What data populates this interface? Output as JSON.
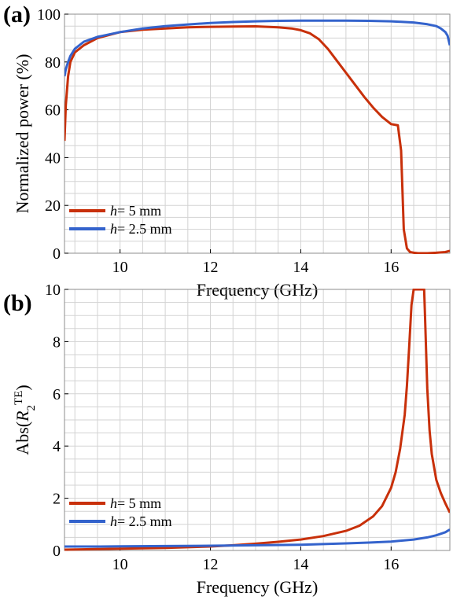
{
  "chart_data": [
    {
      "panel_label": "(a)",
      "type": "line",
      "xlabel": "Frequency (GHz)",
      "ylabel": "Normalized power (%)",
      "xlim": [
        8.77,
        17.3
      ],
      "ylim": [
        0,
        100
      ],
      "xticks": [
        10,
        12,
        14,
        16
      ],
      "yticks": [
        0,
        20,
        40,
        60,
        80,
        100
      ],
      "grid": true,
      "legend_position": "bottom-left",
      "series": [
        {
          "name_prefix": "h",
          "name_suffix": "= 5 mm",
          "color": "#c8300a",
          "x": [
            8.77,
            8.8,
            8.85,
            8.9,
            9.0,
            9.2,
            9.5,
            10.0,
            10.5,
            11.0,
            11.5,
            12.0,
            12.5,
            13.0,
            13.5,
            13.8,
            14.0,
            14.2,
            14.4,
            14.6,
            14.8,
            15.0,
            15.2,
            15.4,
            15.6,
            15.8,
            16.0,
            16.15,
            16.22,
            16.28,
            16.35,
            16.42,
            16.5,
            16.6,
            16.8,
            17.0,
            17.2,
            17.3
          ],
          "y": [
            47,
            62,
            74,
            80,
            84,
            87,
            90,
            92.5,
            93.5,
            94,
            94.5,
            94.7,
            94.8,
            94.9,
            94.5,
            94.0,
            93.3,
            92.0,
            89.5,
            85.5,
            80.5,
            75.5,
            70.5,
            65.5,
            61,
            57,
            54,
            53.5,
            43,
            10,
            2,
            0.5,
            0.2,
            0,
            0,
            0.2,
            0.5,
            1
          ]
        },
        {
          "name_prefix": "h",
          "name_suffix": "= 2.5 mm",
          "color": "#3463cc",
          "x": [
            8.77,
            8.8,
            8.85,
            8.9,
            9.0,
            9.2,
            9.5,
            10.0,
            10.5,
            11.0,
            11.5,
            12.0,
            12.5,
            13.0,
            13.5,
            14.0,
            14.5,
            15.0,
            15.5,
            16.0,
            16.5,
            16.8,
            17.0,
            17.1,
            17.2,
            17.25,
            17.3
          ],
          "y": [
            74,
            77,
            80,
            82.5,
            85.5,
            88.5,
            90.5,
            92.5,
            94,
            95,
            95.7,
            96.3,
            96.7,
            97,
            97.2,
            97.3,
            97.3,
            97.3,
            97.2,
            97,
            96.5,
            95.8,
            95,
            94,
            92.5,
            91,
            87
          ]
        }
      ]
    },
    {
      "panel_label": "(b)",
      "type": "line",
      "xlabel": "Frequency (GHz)",
      "ylabel_prefix": "Abs(",
      "ylabel_var": "R",
      "ylabel_sub": "2",
      "ylabel_sup": "TE",
      "ylabel_suffix": ")",
      "xlim": [
        8.77,
        17.3
      ],
      "ylim": [
        0,
        10
      ],
      "xticks": [
        10,
        12,
        14,
        16
      ],
      "yticks": [
        0,
        2,
        4,
        6,
        8,
        10
      ],
      "grid": true,
      "legend_position": "bottom-left",
      "series": [
        {
          "name_prefix": "h",
          "name_suffix": "= 5 mm",
          "color": "#c8300a",
          "x": [
            8.77,
            9.5,
            10.0,
            11.0,
            12.0,
            12.5,
            13.0,
            13.5,
            14.0,
            14.5,
            15.0,
            15.3,
            15.6,
            15.8,
            16.0,
            16.1,
            16.2,
            16.3,
            16.35,
            16.4,
            16.45,
            16.5,
            16.52,
            16.73,
            16.75,
            16.8,
            16.85,
            16.9,
            17.0,
            17.1,
            17.2,
            17.3
          ],
          "y": [
            0.03,
            0.05,
            0.07,
            0.1,
            0.15,
            0.2,
            0.26,
            0.33,
            0.42,
            0.55,
            0.75,
            0.95,
            1.3,
            1.7,
            2.4,
            3.0,
            3.9,
            5.2,
            6.3,
            7.8,
            9.4,
            10,
            10,
            10,
            9.0,
            6.2,
            4.6,
            3.7,
            2.7,
            2.2,
            1.8,
            1.45
          ]
        },
        {
          "name_prefix": "h",
          "name_suffix": "= 2.5 mm",
          "color": "#3463cc",
          "x": [
            8.77,
            9.5,
            10.0,
            11.0,
            12.0,
            13.0,
            14.0,
            15.0,
            15.5,
            16.0,
            16.5,
            16.8,
            17.0,
            17.2,
            17.3
          ],
          "y": [
            0.15,
            0.15,
            0.16,
            0.17,
            0.18,
            0.2,
            0.22,
            0.27,
            0.3,
            0.34,
            0.42,
            0.5,
            0.58,
            0.7,
            0.8
          ]
        }
      ]
    }
  ]
}
